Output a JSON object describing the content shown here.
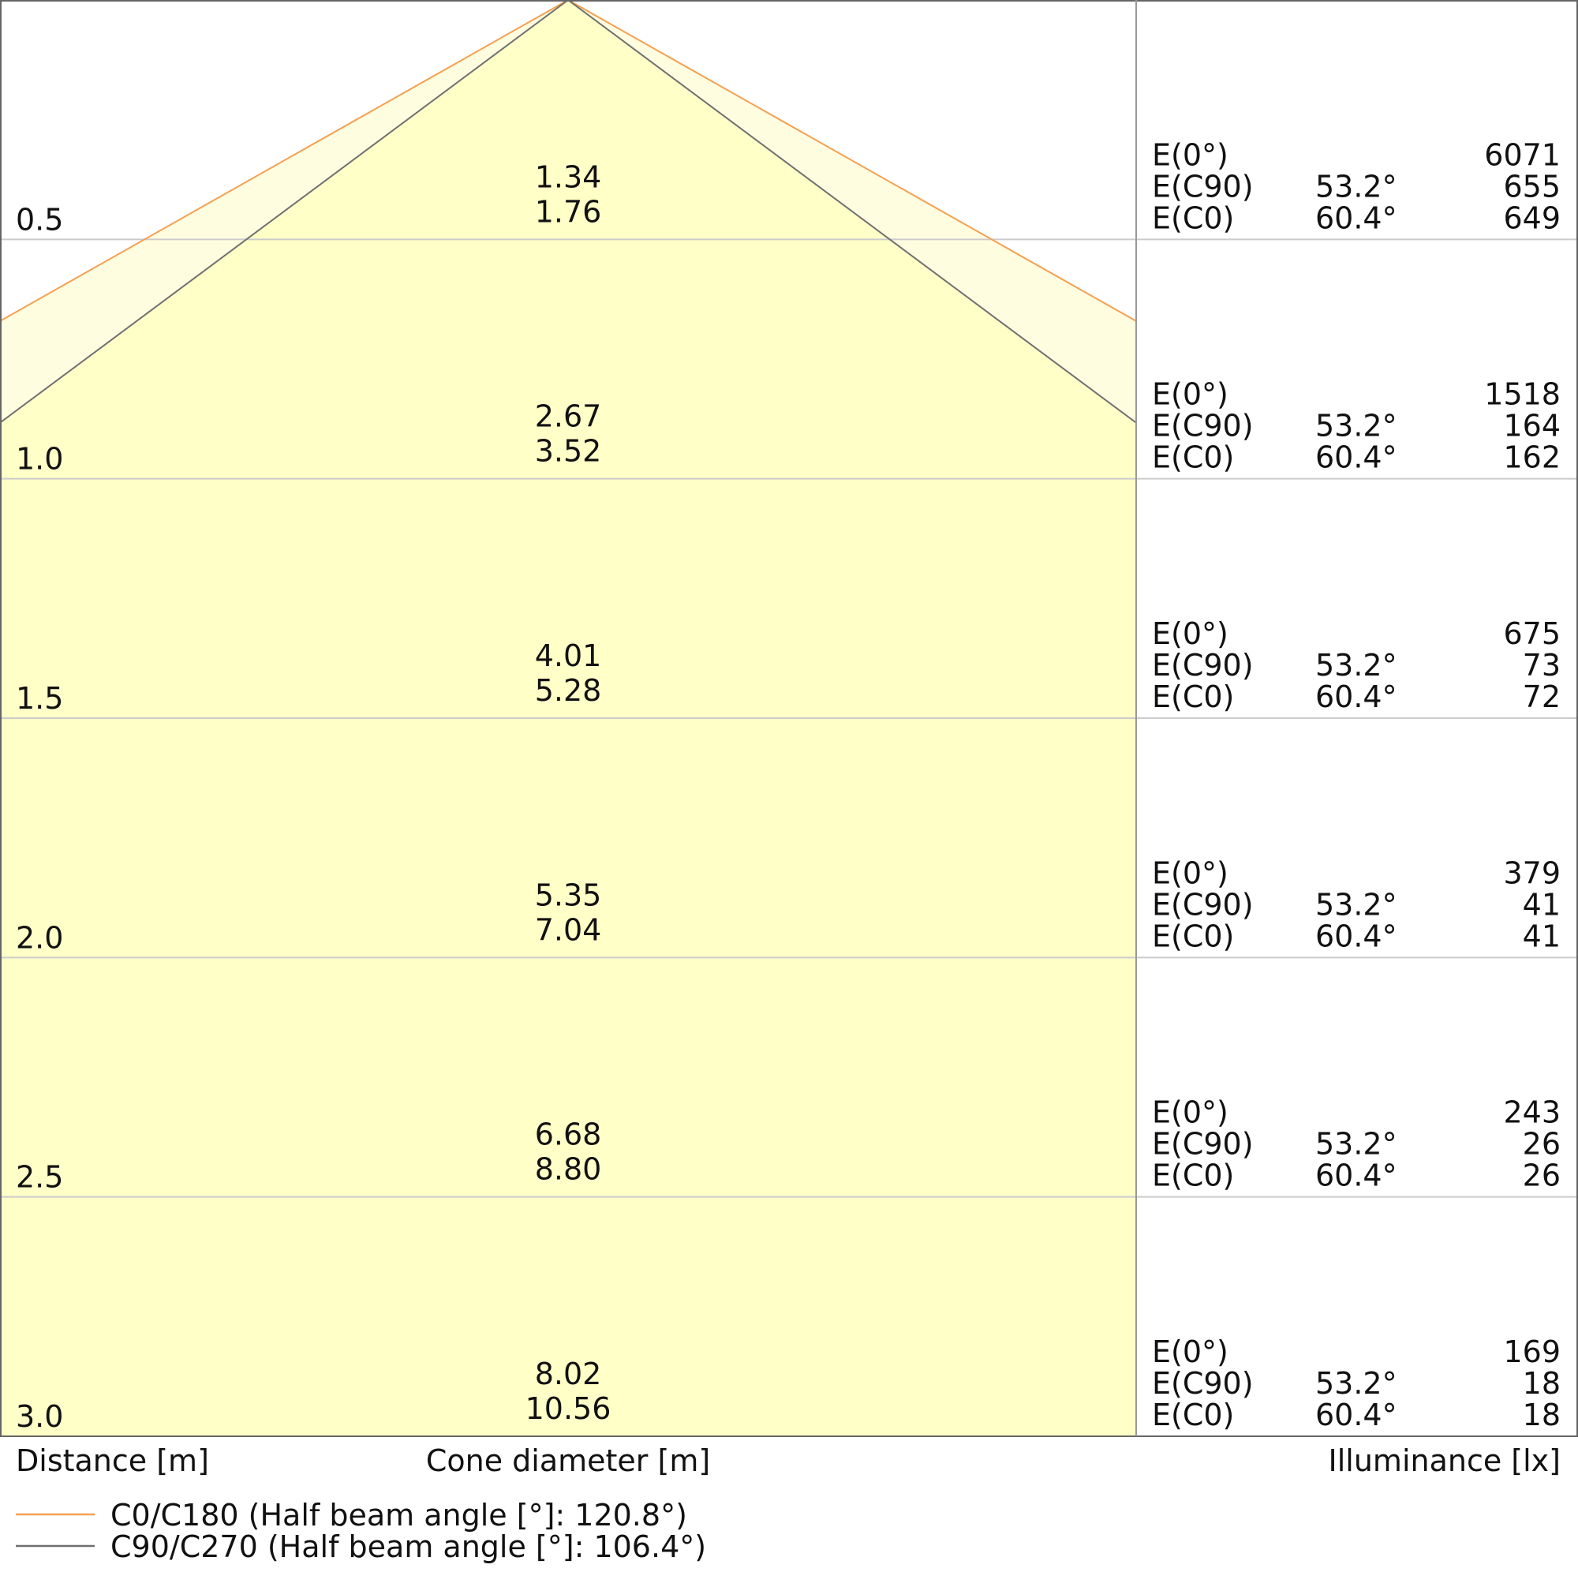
{
  "chart_data": {
    "type": "cone-diagram",
    "xlabel_left": "Distance [m]",
    "xlabel_center": "Cone diameter [m]",
    "xlabel_right": "Illuminance [lx]",
    "distances": [
      "0.5",
      "1.0",
      "1.5",
      "2.0",
      "2.5",
      "3.0"
    ],
    "series": [
      {
        "name": "C0/C180 (Half beam angle [°]: 120.8°)",
        "color": "#f5a050",
        "diameters": [
          "1.76",
          "3.52",
          "5.28",
          "7.04",
          "8.80",
          "10.56"
        ]
      },
      {
        "name": "C90/C270 (Half beam angle [°]: 106.4°)",
        "color": "#707070",
        "diameters": [
          "1.34",
          "2.67",
          "4.01",
          "5.35",
          "6.68",
          "8.02"
        ]
      }
    ],
    "illuminance_labels": {
      "e0": "E(0°)",
      "c90": "E(C90)",
      "c0": "E(C0)"
    },
    "angles": {
      "c90": "53.2°",
      "c0": "60.4°"
    },
    "illuminance": {
      "e0": [
        "6071",
        "1518",
        "675",
        "379",
        "243",
        "169"
      ],
      "c90": [
        "655",
        "164",
        "73",
        "41",
        "26",
        "18"
      ],
      "c0": [
        "649",
        "162",
        "72",
        "41",
        "26",
        "18"
      ]
    },
    "colors": {
      "cone_fill": "#ffffc8",
      "outer_fill": "#fffde0",
      "grid": "#cccccc"
    }
  }
}
